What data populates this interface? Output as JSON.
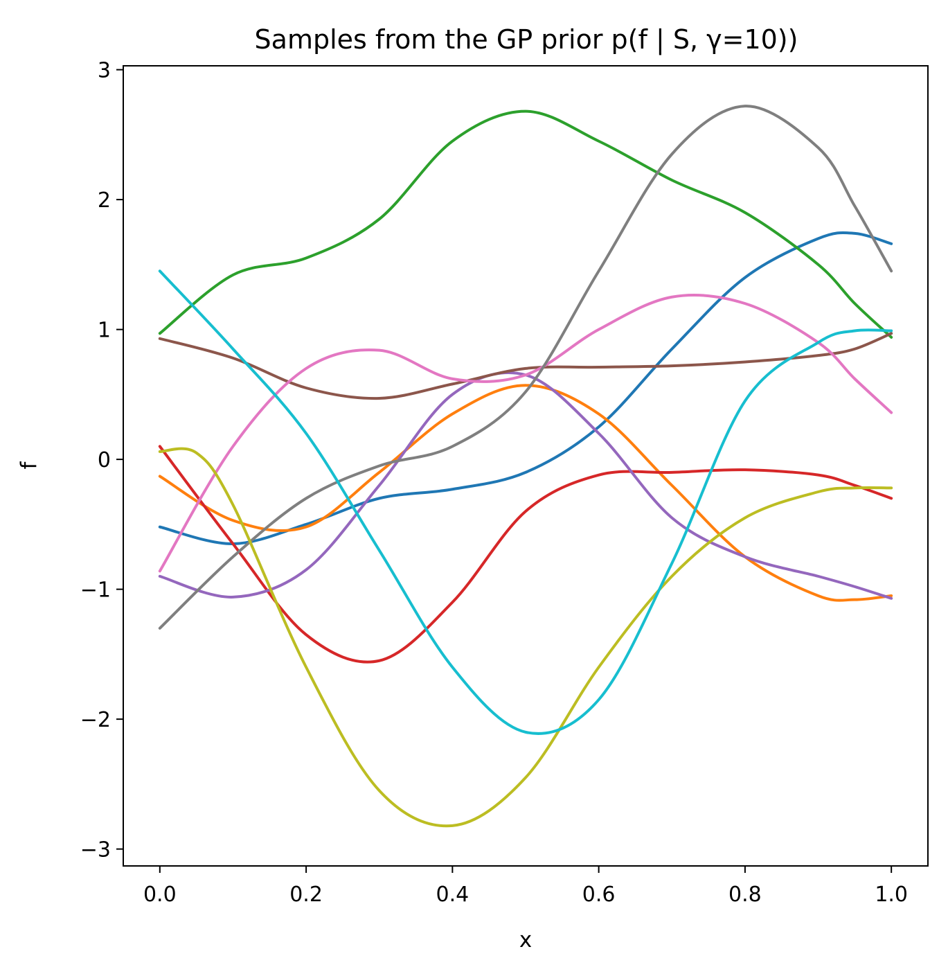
{
  "chart_data": {
    "type": "line",
    "title": "Samples from the GP prior p(f | S, γ=10))",
    "xlabel": "x",
    "ylabel": "f",
    "xlim": [
      -0.05,
      1.05
    ],
    "ylim": [
      -3.13,
      3.03
    ],
    "xticks": [
      0.0,
      0.2,
      0.4,
      0.6,
      0.8,
      1.0
    ],
    "xtick_labels": [
      "0.0",
      "0.2",
      "0.4",
      "0.6",
      "0.8",
      "1.0"
    ],
    "yticks": [
      3,
      2,
      1,
      0,
      -1,
      -2,
      -3
    ],
    "ytick_labels": [
      "3",
      "2",
      "1",
      "0",
      "−1",
      "−2",
      "−3"
    ],
    "grid": false,
    "legend": "none",
    "series": [
      {
        "color": "#1f77b4",
        "x": [
          0.0,
          0.1,
          0.2,
          0.3,
          0.4,
          0.5,
          0.6,
          0.7,
          0.8,
          0.9,
          0.95,
          1.0
        ],
        "y": [
          -0.52,
          -0.65,
          -0.5,
          -0.3,
          -0.23,
          -0.1,
          0.25,
          0.85,
          1.4,
          1.7,
          1.74,
          1.66
        ]
      },
      {
        "color": "#ff7f0e",
        "x": [
          0.0,
          0.1,
          0.2,
          0.3,
          0.4,
          0.5,
          0.6,
          0.7,
          0.8,
          0.9,
          0.95,
          1.0
        ],
        "y": [
          -0.13,
          -0.47,
          -0.52,
          -0.1,
          0.35,
          0.57,
          0.35,
          -0.2,
          -0.75,
          -1.05,
          -1.08,
          -1.05
        ]
      },
      {
        "color": "#2ca02c",
        "x": [
          0.0,
          0.1,
          0.2,
          0.3,
          0.4,
          0.5,
          0.6,
          0.7,
          0.8,
          0.9,
          0.95,
          1.0
        ],
        "y": [
          0.97,
          1.42,
          1.55,
          1.85,
          2.45,
          2.68,
          2.45,
          2.15,
          1.9,
          1.5,
          1.2,
          0.94
        ]
      },
      {
        "color": "#d62728",
        "x": [
          0.0,
          0.1,
          0.2,
          0.3,
          0.4,
          0.5,
          0.6,
          0.7,
          0.8,
          0.9,
          0.95,
          1.0
        ],
        "y": [
          0.1,
          -0.65,
          -1.35,
          -1.55,
          -1.1,
          -0.4,
          -0.12,
          -0.1,
          -0.08,
          -0.12,
          -0.2,
          -0.3
        ]
      },
      {
        "color": "#9467bd",
        "x": [
          0.0,
          0.1,
          0.2,
          0.3,
          0.4,
          0.5,
          0.6,
          0.7,
          0.8,
          0.9,
          0.95,
          1.0
        ],
        "y": [
          -0.9,
          -1.06,
          -0.85,
          -0.2,
          0.5,
          0.65,
          0.2,
          -0.45,
          -0.75,
          -0.9,
          -0.98,
          -1.07
        ]
      },
      {
        "color": "#8c564b",
        "x": [
          0.0,
          0.1,
          0.2,
          0.3,
          0.4,
          0.5,
          0.6,
          0.7,
          0.8,
          0.9,
          0.95,
          1.0
        ],
        "y": [
          0.93,
          0.78,
          0.55,
          0.47,
          0.58,
          0.7,
          0.71,
          0.72,
          0.75,
          0.8,
          0.85,
          0.97
        ]
      },
      {
        "color": "#e377c2",
        "x": [
          0.0,
          0.1,
          0.2,
          0.3,
          0.4,
          0.5,
          0.6,
          0.7,
          0.8,
          0.9,
          0.95,
          1.0
        ],
        "y": [
          -0.86,
          0.1,
          0.7,
          0.84,
          0.62,
          0.65,
          1.0,
          1.25,
          1.2,
          0.9,
          0.62,
          0.36
        ]
      },
      {
        "color": "#7f7f7f",
        "x": [
          0.0,
          0.1,
          0.2,
          0.3,
          0.4,
          0.5,
          0.6,
          0.7,
          0.8,
          0.9,
          0.95,
          1.0
        ],
        "y": [
          -1.3,
          -0.75,
          -0.3,
          -0.05,
          0.1,
          0.52,
          1.45,
          2.35,
          2.72,
          2.4,
          1.95,
          1.45
        ]
      },
      {
        "color": "#bcbd22",
        "x": [
          0.0,
          0.05,
          0.1,
          0.2,
          0.3,
          0.4,
          0.5,
          0.6,
          0.7,
          0.8,
          0.9,
          0.95,
          1.0
        ],
        "y": [
          0.06,
          0.05,
          -0.35,
          -1.6,
          -2.55,
          -2.82,
          -2.45,
          -1.6,
          -0.9,
          -0.45,
          -0.25,
          -0.22,
          -0.22
        ]
      },
      {
        "color": "#17becf",
        "x": [
          0.0,
          0.1,
          0.2,
          0.3,
          0.4,
          0.5,
          0.6,
          0.7,
          0.8,
          0.9,
          0.95,
          1.0
        ],
        "y": [
          1.45,
          0.85,
          0.2,
          -0.7,
          -1.6,
          -2.1,
          -1.85,
          -0.8,
          0.45,
          0.9,
          0.99,
          0.99
        ]
      }
    ]
  }
}
